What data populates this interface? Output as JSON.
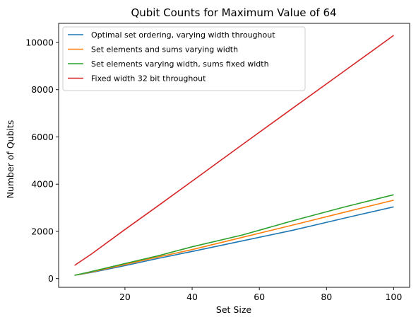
{
  "chart_data": {
    "type": "line",
    "title": "Qubit Counts for Maximum Value of 64",
    "xlabel": "Set Size",
    "ylabel": "Number of Qubits",
    "xlim": [
      0.25,
      104.75
    ],
    "ylim": [
      -368,
      10808
    ],
    "xticks": [
      20,
      40,
      60,
      80,
      100
    ],
    "yticks": [
      0,
      2000,
      4000,
      6000,
      8000,
      10000
    ],
    "grid": false,
    "legend_position": "top-left",
    "x": [
      5,
      10,
      20,
      30,
      40,
      55,
      70,
      85,
      100
    ],
    "series": [
      {
        "name": "Optimal set ordering, varying width throughout",
        "color": "#1f77b4",
        "values": [
          140,
          260,
          550,
          860,
          1150,
          1600,
          2050,
          2550,
          3040
        ]
      },
      {
        "name": "Set elements and sums varying width",
        "color": "#ff7f0e",
        "values": [
          140,
          280,
          600,
          920,
          1230,
          1750,
          2270,
          2800,
          3320
        ]
      },
      {
        "name": "Set elements varying width, sums fixed width",
        "color": "#2ca02c",
        "values": [
          140,
          300,
          640,
          970,
          1350,
          1850,
          2450,
          3020,
          3550
        ]
      },
      {
        "name": "Fixed width 32 bit throughout",
        "color": "#d62728",
        "values": [
          560,
          1040,
          2080,
          3100,
          4130,
          5680,
          7220,
          8760,
          10300
        ]
      }
    ]
  }
}
